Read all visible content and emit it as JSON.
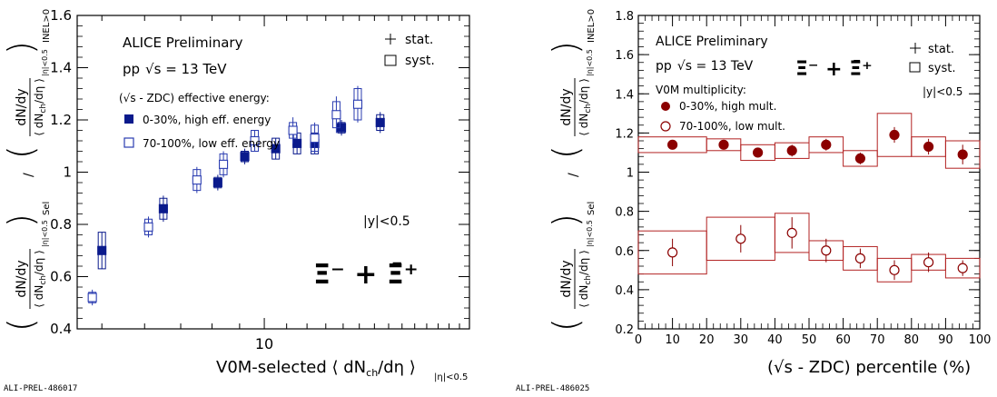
{
  "left_id": "ALI-PREL-486017",
  "right_id": "ALI-PREL-486025",
  "colors": {
    "navy": "#0a1a8c",
    "open_blue": "#2a3cb0",
    "dark_red": "#8b0000",
    "box_red": "#b22222"
  },
  "chart_data": [
    {
      "type": "scatter",
      "xscale": "log",
      "xlim": [
        4.5,
        24
      ],
      "ylim": [
        0.4,
        1.6
      ],
      "yticks": [
        "0.4",
        "0.6",
        "0.8",
        "1",
        "1.2",
        "1.4",
        "1.6"
      ],
      "xtick_label": "10",
      "xlabel": "V0M-selected ⟨ dN",
      "xlabel_sub": "ch",
      "xlabel_tail": "/dη ⟩",
      "xlabel_range": "|η|<0.5",
      "ylabel_bottom": "dN/dy",
      "ylabel_top": "dN/dy",
      "ylabel_den": "⟨ dN",
      "ylabel_den_sub": "ch",
      "ylabel_den_tail": "/dη ⟩",
      "ylabel_den_range": "|η|<0.5",
      "ylabel_sel": "Sel",
      "ylabel_inel": "INEL>0",
      "ylabel_slash": "/",
      "title1": "ALICE Preliminary",
      "title2_pp": "pp",
      "title2_sqrt": "√s = 13 TeV",
      "legend_stat": "stat.",
      "legend_syst": "syst.",
      "legend_header": "(√s - ZDC) effective energy:",
      "rapidity": "|y|<0.5",
      "particle_label": "Ξ⁻ + Ξ̄⁺",
      "series": [
        {
          "name": "0-30%, high eff. energy",
          "marker": "filled-square",
          "x": [
            5.0,
            6.5,
            8.2,
            9.2,
            10.5,
            11.5,
            12.4,
            13.9,
            16.4
          ],
          "y": [
            0.7,
            0.86,
            0.96,
            1.06,
            1.09,
            1.11,
            1.11,
            1.17,
            1.19
          ],
          "stat": [
            0.07,
            0.05,
            0.03,
            0.03,
            0.04,
            0.04,
            0.04,
            0.03,
            0.04
          ],
          "syst": [
            0.07,
            0.04,
            0.02,
            0.02,
            0.04,
            0.04,
            0.04,
            0.02,
            0.03
          ]
        },
        {
          "name": "70-100%, low eff. energy",
          "marker": "open-square",
          "x": [
            4.8,
            6.1,
            7.5,
            8.4,
            9.6,
            11.3,
            12.4,
            13.6,
            14.9
          ],
          "y": [
            0.52,
            0.79,
            0.97,
            1.03,
            1.12,
            1.16,
            1.13,
            1.22,
            1.26
          ],
          "stat": [
            0.03,
            0.04,
            0.05,
            0.05,
            0.04,
            0.05,
            0.06,
            0.07,
            0.07
          ],
          "syst": [
            0.02,
            0.03,
            0.04,
            0.04,
            0.04,
            0.03,
            0.05,
            0.05,
            0.06
          ]
        }
      ]
    },
    {
      "type": "scatter",
      "xlim": [
        0,
        100
      ],
      "ylim": [
        0.2,
        1.8
      ],
      "xticks": [
        "0",
        "10",
        "20",
        "30",
        "40",
        "50",
        "60",
        "70",
        "80",
        "90",
        "100"
      ],
      "yticks": [
        "0.2",
        "0.4",
        "0.6",
        "0.8",
        "1",
        "1.2",
        "1.4",
        "1.6",
        "1.8"
      ],
      "xlabel": "(√s - ZDC) percentile (%)",
      "ylabel_bottom": "dN/dy",
      "ylabel_top": "dN/dy",
      "ylabel_den": "⟨ dN",
      "ylabel_den_sub": "ch",
      "ylabel_den_tail": "/dη ⟩",
      "ylabel_den_range": "|η|<0.5",
      "ylabel_sel": "Sel",
      "ylabel_inel": "INEL>0",
      "ylabel_slash": "/",
      "title1": "ALICE Preliminary",
      "title2_pp": "pp",
      "title2_sqrt": "√s = 13 TeV",
      "legend_stat": "stat.",
      "legend_syst": "syst.",
      "legend_header": "V0M multiplicity:",
      "rapidity": "|y|<0.5",
      "particle_label": "Ξ⁻ + Ξ̄⁺",
      "series": [
        {
          "name": "0-30%, high mult.",
          "marker": "filled-circle",
          "x": [
            10,
            25,
            35,
            45,
            55,
            65,
            75,
            85,
            95
          ],
          "bin_lo": [
            0,
            20,
            30,
            40,
            50,
            60,
            70,
            80,
            90
          ],
          "bin_hi": [
            20,
            30,
            40,
            50,
            60,
            70,
            80,
            90,
            100
          ],
          "y": [
            1.14,
            1.14,
            1.1,
            1.11,
            1.14,
            1.07,
            1.19,
            1.13,
            1.09
          ],
          "stat": [
            0.02,
            0.02,
            0.02,
            0.03,
            0.03,
            0.03,
            0.04,
            0.04,
            0.05
          ],
          "syst": [
            0.04,
            0.03,
            0.04,
            0.04,
            0.04,
            0.04,
            0.11,
            0.05,
            0.07
          ]
        },
        {
          "name": "70-100%, low mult.",
          "marker": "open-circle",
          "x": [
            10,
            30,
            45,
            55,
            65,
            75,
            85,
            95
          ],
          "bin_lo": [
            0,
            20,
            40,
            50,
            60,
            70,
            80,
            90
          ],
          "bin_hi": [
            20,
            40,
            50,
            60,
            70,
            80,
            90,
            100
          ],
          "y": [
            0.59,
            0.66,
            0.69,
            0.6,
            0.56,
            0.5,
            0.54,
            0.51
          ],
          "stat": [
            0.07,
            0.07,
            0.08,
            0.06,
            0.05,
            0.05,
            0.05,
            0.04
          ],
          "syst": [
            0.11,
            0.11,
            0.1,
            0.05,
            0.06,
            0.06,
            0.04,
            0.05
          ]
        }
      ]
    }
  ]
}
